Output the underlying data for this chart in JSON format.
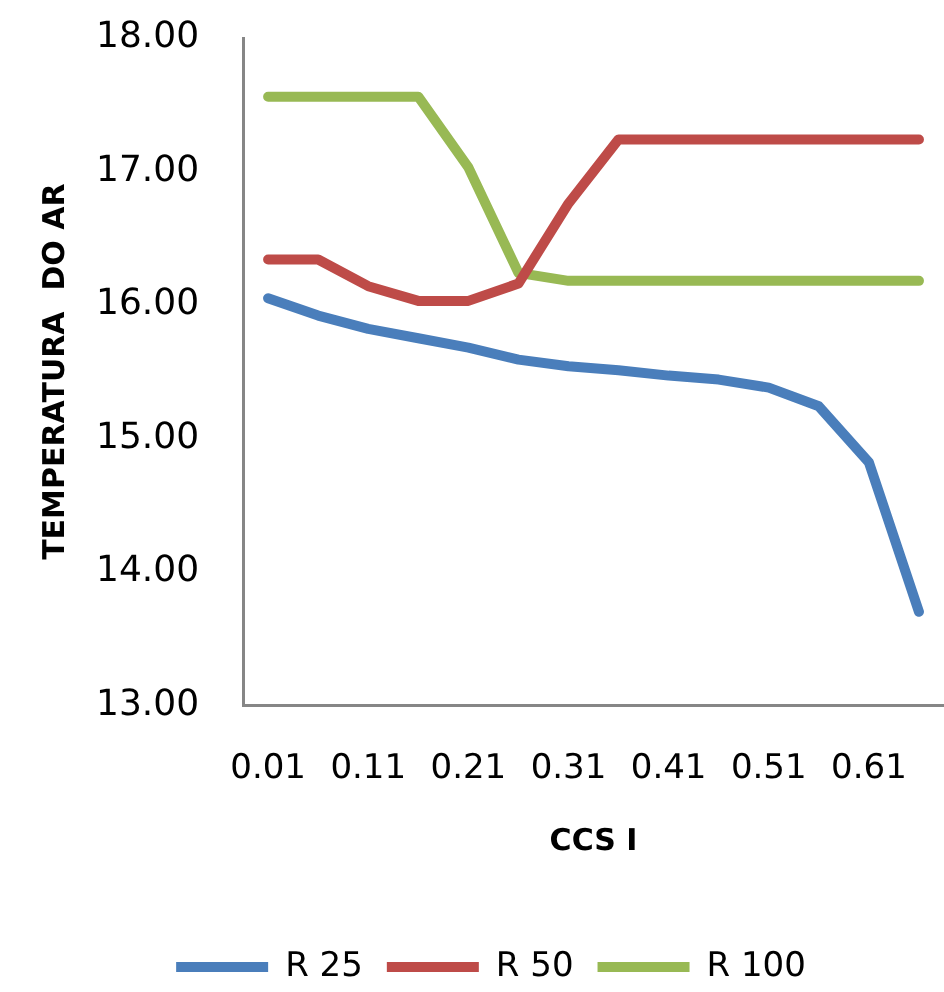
{
  "chart_data": {
    "type": "line",
    "xlabel": "CCS I",
    "ylabel": "TEMPERATURA  DO AR",
    "categories": [
      "0.01",
      null,
      "0.11",
      null,
      "0.21",
      null,
      "0.31",
      null,
      "0.41",
      null,
      "0.51",
      null,
      "0.61",
      null
    ],
    "series": [
      {
        "name": "R 25",
        "color": "#4a7ebb",
        "values": [
          16.05,
          15.92,
          15.82,
          15.75,
          15.68,
          15.59,
          15.54,
          15.51,
          15.47,
          15.44,
          15.38,
          15.24,
          14.82,
          13.7
        ]
      },
      {
        "name": "R 50",
        "color": "#be4b48",
        "values": [
          16.34,
          16.34,
          16.14,
          16.03,
          16.03,
          16.16,
          16.76,
          17.24,
          17.24,
          17.24,
          17.24,
          17.24,
          17.24,
          17.24
        ]
      },
      {
        "name": "R 100",
        "color": "#98b954",
        "values": [
          17.56,
          17.56,
          17.56,
          17.56,
          17.03,
          16.24,
          16.18,
          16.18,
          16.18,
          16.18,
          16.18,
          16.18,
          16.18,
          16.18
        ]
      }
    ],
    "ylim": [
      13,
      18
    ],
    "yticks": [
      {
        "value": 13,
        "label": "13.00"
      },
      {
        "value": 14,
        "label": "14.00"
      },
      {
        "value": 15,
        "label": "15.00"
      },
      {
        "value": 16,
        "label": "16.00"
      },
      {
        "value": 17,
        "label": "17.00"
      },
      {
        "value": 18,
        "label": "18.00"
      }
    ],
    "grid": false,
    "legend": "bottom",
    "marker": "none",
    "line_style": "solid"
  }
}
